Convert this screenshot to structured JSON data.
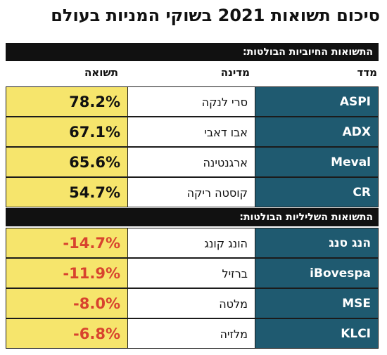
{
  "title": "סיכום תשואות 2021 בשוקי המניות בעולם",
  "colors": {
    "index_bg": "#1f5a70",
    "return_bg": "#f6e56c",
    "positive": "#111111",
    "negative": "#d8432e"
  },
  "positive": {
    "label": "התשואות החיוביות הבולטות:",
    "headers": {
      "index": "מדד",
      "country": "מדינה",
      "return": "תשואה"
    },
    "rows": [
      {
        "index": "ASPI",
        "country": "סרי לנקה",
        "return": "78.2%"
      },
      {
        "index": "ADX",
        "country": "אבו דאבי",
        "return": "67.1%"
      },
      {
        "index": "Meval",
        "country": "ארגנטינה",
        "return": "65.6%"
      },
      {
        "index": "CR",
        "country": "קוסטה ריקה",
        "return": "54.7%"
      }
    ]
  },
  "negative": {
    "label": "התשואות השליליות הבולטות:",
    "rows": [
      {
        "index": "הנג סנג",
        "country": "הונג קונג",
        "return": "-14.7%"
      },
      {
        "index": "iBovespa",
        "country": "ברזיל",
        "return": "-11.9%"
      },
      {
        "index": "MSE",
        "country": "מלטה",
        "return": "-8.0%"
      },
      {
        "index": "KLCI",
        "country": "מלזיה",
        "return": "-6.8%"
      }
    ]
  }
}
